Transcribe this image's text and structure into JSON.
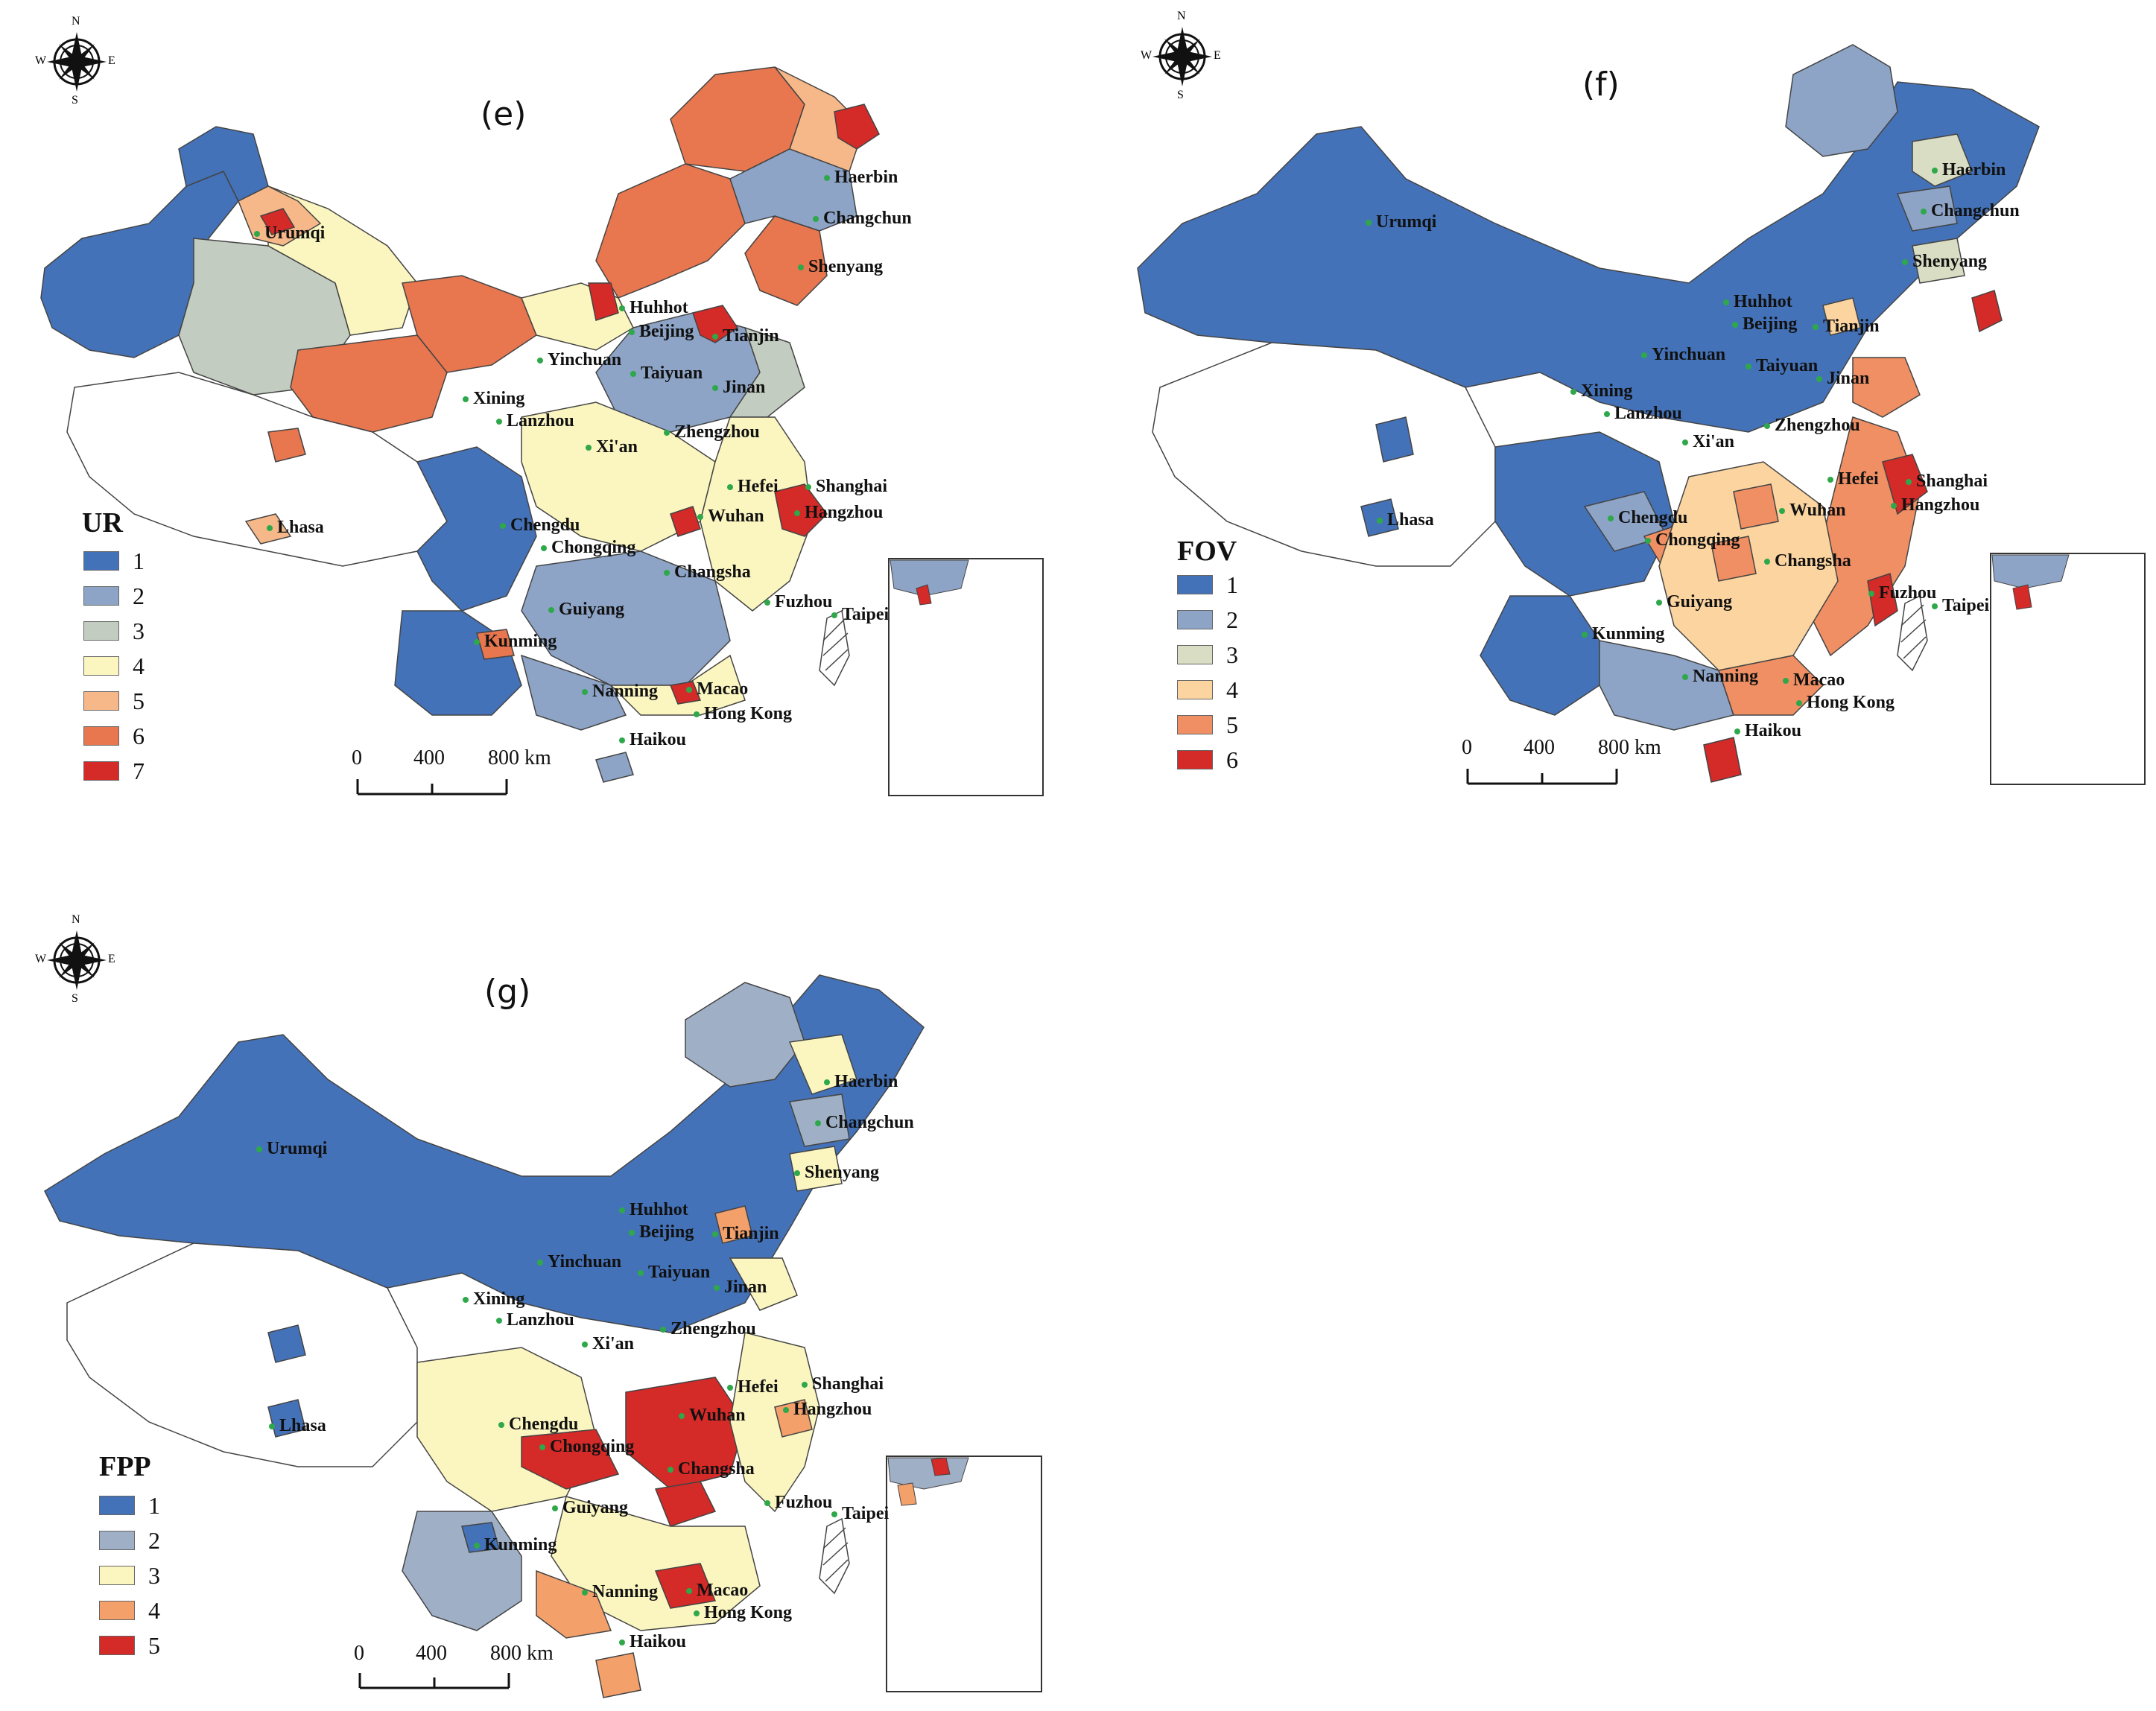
{
  "colors": {
    "c1": "#4472b8",
    "c2": "#8da4c6",
    "c3": "#c3ccc0",
    "c4": "#fbf6c0",
    "c5": "#f7b889",
    "c6": "#e8764f",
    "c7": "#d42a28",
    "none": "#ffffff",
    "outline": "#444444",
    "city_dot": "#2ea84a"
  },
  "panels": [
    {
      "label": "(e)",
      "legend_title": "UR",
      "classes": [
        "1",
        "2",
        "3",
        "4",
        "5",
        "6",
        "7"
      ],
      "class_colors": [
        "#4472b8",
        "#8da4c6",
        "#c3ccc0",
        "#fbf6c0",
        "#f7b889",
        "#e8764f",
        "#d42a28"
      ]
    },
    {
      "label": "(f)",
      "legend_title": "FOV",
      "classes": [
        "1",
        "2",
        "3",
        "4",
        "5",
        "6"
      ],
      "class_colors": [
        "#4472b8",
        "#8da4c6",
        "#d9ddc4",
        "#fbd4a0",
        "#ef8f63",
        "#d42a28"
      ]
    },
    {
      "label": "(g)",
      "legend_title": "FPP",
      "classes": [
        "1",
        "2",
        "3",
        "4",
        "5"
      ],
      "class_colors": [
        "#4472b8",
        "#9fb0c6",
        "#fbf6c0",
        "#f3a06b",
        "#d42a28"
      ]
    }
  ],
  "compass": {
    "n": "N",
    "s": "S",
    "e": "E",
    "w": "W"
  },
  "scale_bar": {
    "ticks": [
      "0",
      "400",
      "800 km"
    ]
  },
  "cities": [
    "Urumqi",
    "Haerbin",
    "Changchun",
    "Shenyang",
    "Huhhot",
    "Beijing",
    "Tianjin",
    "Yinchuan",
    "Taiyuan",
    "Jinan",
    "Xining",
    "Lanzhou",
    "Xi'an",
    "Zhengzhou",
    "Hefei",
    "Shanghai",
    "Hangzhou",
    "Lhasa",
    "Chengdu",
    "Wuhan",
    "Chongqing",
    "Changsha",
    "Guiyang",
    "Fuzhou",
    "Taipei",
    "Kunming",
    "Nanning",
    "Macao",
    "Hong Kong",
    "Haikou"
  ]
}
